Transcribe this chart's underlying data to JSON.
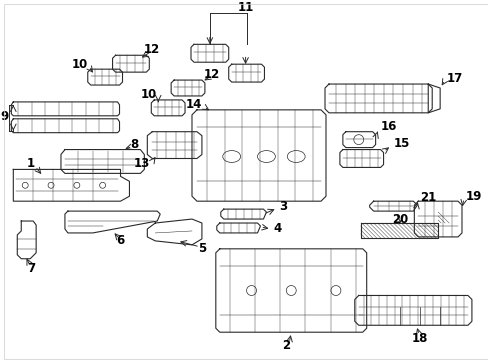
{
  "background_color": "#ffffff",
  "line_color": "#2a2a2a",
  "text_color": "#000000",
  "figsize": [
    4.89,
    3.6
  ],
  "dpi": 100,
  "border_color": "#cccccc"
}
